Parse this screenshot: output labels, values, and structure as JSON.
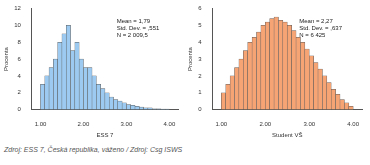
{
  "chart_data": [
    {
      "type": "histogram",
      "x_label": "ESS 7",
      "y_label": "Procenta",
      "color": "#9ccaf0",
      "annotations": [
        "Mean = 1,79",
        "Std. Dev. = ,551",
        "N = 2 009,5"
      ],
      "bins": [
        1.0,
        1.1,
        1.2,
        1.3,
        1.4,
        1.5,
        1.6,
        1.7,
        1.8,
        1.9,
        2.0,
        2.1,
        2.2,
        2.3,
        2.4,
        2.5,
        2.6,
        2.7,
        2.8,
        2.9,
        3.0,
        3.1,
        3.2,
        3.3,
        3.4,
        3.5,
        3.6,
        3.7,
        3.8,
        3.9,
        4.0
      ],
      "values": [
        3,
        4,
        5,
        6,
        8,
        9,
        10,
        7,
        8,
        6,
        5,
        5,
        4,
        3,
        2.5,
        2,
        1.5,
        1.2,
        1,
        0.8,
        0.6,
        0.5,
        0.4,
        0.3,
        0.2,
        0.2,
        0.1,
        0.1,
        0.05,
        0.05
      ],
      "xlim": [
        0.8,
        4.2
      ],
      "xticks": [
        {
          "value": 1,
          "label": "1.00"
        },
        {
          "value": 2,
          "label": "2.00"
        },
        {
          "value": 3,
          "label": "3.00"
        },
        {
          "value": 4,
          "label": "4.00"
        }
      ],
      "ylim": [
        0,
        12
      ],
      "yticks": [
        0,
        2,
        4,
        6,
        8,
        10,
        12
      ],
      "grid": false
    },
    {
      "type": "histogram",
      "x_label": "Student VŠ",
      "y_label": "Procenta",
      "color": "#f7a475",
      "annotations": [
        "Mean = 2,27",
        "Std. Dev. = ,637",
        "N = 6 425"
      ],
      "bins": [
        1.0,
        1.1,
        1.2,
        1.3,
        1.4,
        1.5,
        1.6,
        1.7,
        1.8,
        1.9,
        2.0,
        2.1,
        2.2,
        2.3,
        2.4,
        2.5,
        2.6,
        2.7,
        2.8,
        2.9,
        3.0,
        3.1,
        3.2,
        3.3,
        3.4,
        3.5,
        3.6,
        3.7,
        3.8,
        3.9,
        4.0
      ],
      "values": [
        1,
        1.5,
        2,
        2.5,
        3,
        3.5,
        4,
        4.3,
        4.6,
        5,
        5.2,
        5.4,
        5.5,
        5.3,
        5.2,
        5,
        4.7,
        4.3,
        4,
        3.6,
        3.2,
        2.8,
        2.4,
        2,
        1.6,
        1.2,
        0.9,
        0.6,
        0.4,
        0.2
      ],
      "xlim": [
        0.8,
        4.2
      ],
      "xticks": [
        {
          "value": 1,
          "label": "1.00"
        },
        {
          "value": 2,
          "label": "2.00"
        },
        {
          "value": 3,
          "label": "3.00"
        },
        {
          "value": 4,
          "label": "4.00"
        }
      ],
      "ylim": [
        0,
        6
      ],
      "yticks": [
        0,
        1,
        2,
        3,
        4,
        5,
        6
      ],
      "grid": false
    }
  ],
  "caption": "Zdroj: ESS 7, Česká republika, váženo / Zdroj: Csg ISWS"
}
